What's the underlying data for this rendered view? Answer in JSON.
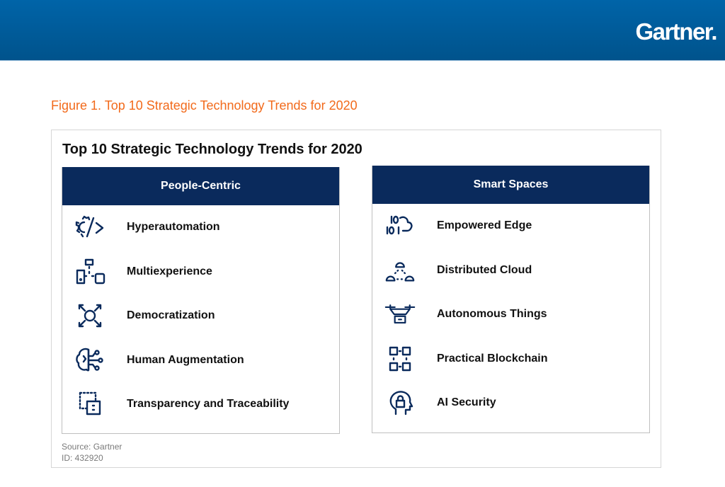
{
  "header": {
    "logo": "Gartner."
  },
  "figure_caption": "Figure 1. Top 10 Strategic Technology Trends for 2020",
  "title": "Top 10 Strategic Technology Trends for 2020",
  "panels": [
    {
      "heading": "People-Centric",
      "items": [
        {
          "label": "Hyperautomation",
          "icon": "gear-code-icon"
        },
        {
          "label": "Multiexperience",
          "icon": "devices-network-icon"
        },
        {
          "label": "Democratization",
          "icon": "expand-circle-icon"
        },
        {
          "label": "Human Augmentation",
          "icon": "brain-circuit-icon"
        },
        {
          "label": "Transparency and Traceability",
          "icon": "dotted-squares-icon"
        }
      ]
    },
    {
      "heading": "Smart Spaces",
      "items": [
        {
          "label": "Empowered Edge",
          "icon": "binary-cloud-icon"
        },
        {
          "label": "Distributed Cloud",
          "icon": "cloud-network-icon"
        },
        {
          "label": "Autonomous Things",
          "icon": "drone-icon"
        },
        {
          "label": "Practical Blockchain",
          "icon": "blockchain-icon"
        },
        {
          "label": "AI Security",
          "icon": "head-lock-icon"
        }
      ]
    }
  ],
  "source": "Source: Gartner",
  "id": "ID: 432920",
  "colors": {
    "navy": "#0a2a5c",
    "orange": "#f26a1b",
    "header": "#0064a8"
  }
}
